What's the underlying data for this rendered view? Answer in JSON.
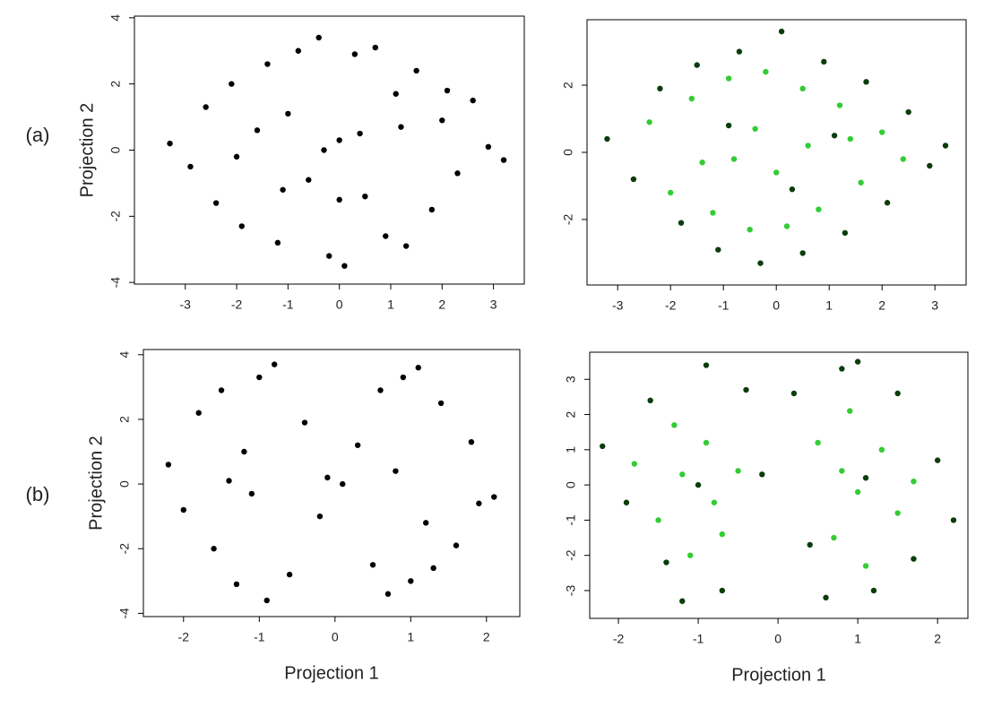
{
  "panel_labels": [
    "(a)",
    "(b)"
  ],
  "chart_data": [
    {
      "type": "scatter",
      "ylabel": "Projection 2",
      "xlim": [
        -3.99,
        3.6
      ],
      "ylim": [
        -4.05,
        4.05
      ],
      "xticks": [
        -3,
        -2,
        -1,
        0,
        1,
        2,
        3
      ],
      "yticks": [
        -4,
        -2,
        0,
        2,
        4
      ],
      "series": [
        {
          "color": "#000000",
          "x": [
            -3.3,
            -2.9,
            -2.6,
            -2.4,
            -2.1,
            -1.9,
            -1.6,
            -1.4,
            -1.2,
            -1.0,
            -0.8,
            -0.6,
            -0.4,
            -0.2,
            0,
            0.1,
            0.3,
            0.5,
            0.7,
            0.9,
            1.1,
            1.3,
            1.5,
            1.8,
            2.0,
            2.3,
            2.6,
            2.9,
            3.2,
            -0.3,
            0.4,
            -1.1,
            1.2,
            0.0,
            -2.0,
            2.1
          ],
          "values": [
            0.2,
            -0.5,
            1.3,
            -1.6,
            2.0,
            -2.3,
            0.6,
            2.6,
            -2.8,
            1.1,
            3.0,
            -0.9,
            3.4,
            -3.2,
            0.3,
            -3.5,
            2.9,
            -1.4,
            3.1,
            -2.6,
            1.7,
            -2.9,
            2.4,
            -1.8,
            0.9,
            -0.7,
            1.5,
            0.1,
            -0.3,
            0.0,
            0.5,
            -1.2,
            0.7,
            -1.5,
            -0.2,
            1.8
          ]
        }
      ]
    },
    {
      "type": "scatter",
      "xlim": [
        -3.58,
        3.59
      ],
      "ylim": [
        -3.95,
        3.95
      ],
      "xticks": [
        -3,
        -2,
        -1,
        0,
        1,
        2,
        3
      ],
      "yticks": [
        -2,
        0,
        2
      ],
      "series": [
        {
          "color": "#0b3d0b",
          "x": [
            -3.2,
            -2.7,
            -2.2,
            -1.8,
            -1.5,
            -1.1,
            -0.7,
            -0.3,
            0.1,
            0.5,
            0.9,
            1.3,
            1.7,
            2.1,
            2.5,
            2.9,
            3.2,
            -0.9,
            0.3,
            1.1
          ],
          "values": [
            0.4,
            -0.8,
            1.9,
            -2.1,
            2.6,
            -2.9,
            3.0,
            -3.3,
            3.6,
            -3.0,
            2.7,
            -2.4,
            2.1,
            -1.5,
            1.2,
            -0.4,
            0.2,
            0.8,
            -1.1,
            0.5
          ]
        },
        {
          "color": "#33cc33",
          "x": [
            -2.4,
            -2.0,
            -1.6,
            -1.2,
            -0.9,
            -0.5,
            -0.2,
            0.2,
            0.5,
            0.8,
            1.2,
            1.6,
            2.0,
            2.4,
            -1.4,
            -0.4,
            0.6,
            1.4,
            0.0,
            -0.8
          ],
          "values": [
            0.9,
            -1.2,
            1.6,
            -1.8,
            2.2,
            -2.3,
            2.4,
            -2.2,
            1.9,
            -1.7,
            1.4,
            -0.9,
            0.6,
            -0.2,
            -0.3,
            0.7,
            0.2,
            0.4,
            -0.6,
            -0.2
          ]
        }
      ]
    },
    {
      "type": "scatter",
      "xlabel": "Projection 1",
      "ylabel": "Projection 2",
      "xlim": [
        -2.53,
        2.44
      ],
      "ylim": [
        -4.1,
        4.16
      ],
      "xticks": [
        -2,
        -1,
        0,
        1,
        2
      ],
      "yticks": [
        -4,
        -2,
        0,
        2,
        4
      ],
      "series": [
        {
          "color": "#000000",
          "x": [
            -2.2,
            -2.0,
            -1.8,
            -1.6,
            -1.5,
            -1.3,
            -1.2,
            -1.0,
            -0.9,
            -0.8,
            -0.6,
            -0.4,
            -0.2,
            -0.1,
            0.1,
            0.3,
            0.5,
            0.6,
            0.7,
            0.9,
            1.0,
            1.1,
            1.3,
            1.4,
            1.6,
            1.8,
            1.9,
            2.1,
            -1.1,
            0.8,
            -1.4,
            1.2
          ],
          "values": [
            0.6,
            -0.8,
            2.2,
            -2.0,
            2.9,
            -3.1,
            1.0,
            3.3,
            -3.6,
            3.7,
            -2.8,
            1.9,
            -1.0,
            0.2,
            0.0,
            1.2,
            -2.5,
            2.9,
            -3.4,
            3.3,
            -3.0,
            3.6,
            -2.6,
            2.5,
            -1.9,
            1.3,
            -0.6,
            -0.4,
            -0.3,
            0.4,
            0.1,
            -1.2
          ]
        }
      ]
    },
    {
      "type": "scatter",
      "xlabel": "Projection 1",
      "xlim": [
        -2.36,
        2.38
      ],
      "ylim": [
        -3.79,
        3.77
      ],
      "xticks": [
        -2,
        -1,
        0,
        1,
        2
      ],
      "yticks": [
        -3,
        -2,
        -1,
        0,
        1,
        2,
        3
      ],
      "series": [
        {
          "color": "#0b3d0b",
          "x": [
            -2.2,
            -1.9,
            -1.6,
            -1.4,
            -1.2,
            -0.9,
            -0.7,
            -0.4,
            -0.2,
            0.2,
            0.4,
            0.6,
            0.8,
            1.0,
            1.2,
            1.5,
            1.7,
            2.0,
            2.2,
            -1.0,
            1.1
          ],
          "values": [
            1.1,
            -0.5,
            2.4,
            -2.2,
            -3.3,
            3.4,
            -3.0,
            2.7,
            0.3,
            2.6,
            -1.7,
            -3.2,
            3.3,
            3.5,
            -3.0,
            2.6,
            -2.1,
            0.7,
            -1.0,
            0.0,
            0.2
          ]
        },
        {
          "color": "#33cc33",
          "x": [
            -1.8,
            -1.5,
            -1.3,
            -1.1,
            -0.9,
            -0.7,
            -0.5,
            0.5,
            0.7,
            0.9,
            1.1,
            1.3,
            1.5,
            1.7,
            -1.2,
            1.0,
            -0.8,
            0.8
          ],
          "values": [
            0.6,
            -1.0,
            1.7,
            -2.0,
            1.2,
            -1.4,
            0.4,
            1.2,
            -1.5,
            2.1,
            -2.3,
            1.0,
            -0.8,
            0.1,
            0.3,
            -0.2,
            -0.5,
            0.4
          ]
        }
      ]
    }
  ]
}
